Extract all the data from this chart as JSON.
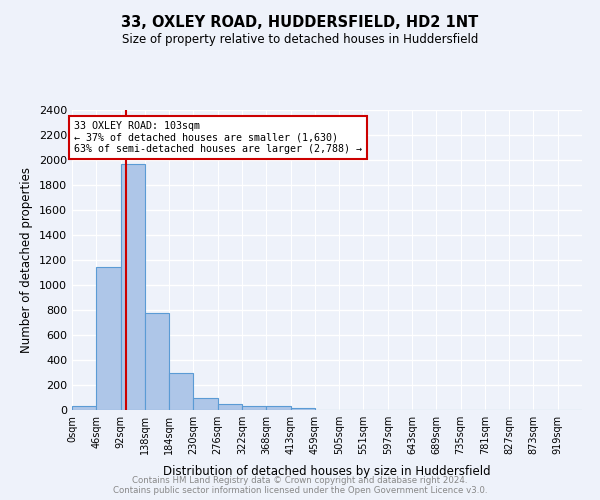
{
  "title": "33, OXLEY ROAD, HUDDERSFIELD, HD2 1NT",
  "subtitle": "Size of property relative to detached houses in Huddersfield",
  "xlabel": "Distribution of detached houses by size in Huddersfield",
  "ylabel": "Number of detached properties",
  "footer_line1": "Contains HM Land Registry data © Crown copyright and database right 2024.",
  "footer_line2": "Contains public sector information licensed under the Open Government Licence v3.0.",
  "bar_labels": [
    "0sqm",
    "46sqm",
    "92sqm",
    "138sqm",
    "184sqm",
    "230sqm",
    "276sqm",
    "322sqm",
    "368sqm",
    "413sqm",
    "459sqm",
    "505sqm",
    "551sqm",
    "597sqm",
    "643sqm",
    "689sqm",
    "735sqm",
    "781sqm",
    "827sqm",
    "873sqm",
    "919sqm"
  ],
  "bar_values": [
    30,
    1145,
    1970,
    780,
    295,
    100,
    45,
    35,
    30,
    15,
    0,
    0,
    0,
    0,
    0,
    0,
    0,
    0,
    0,
    0,
    0
  ],
  "bar_color": "#aec6e8",
  "bar_edgecolor": "#5b9bd5",
  "annotation_box_text": "33 OXLEY ROAD: 103sqm\n← 37% of detached houses are smaller (1,630)\n63% of semi-detached houses are larger (2,788) →",
  "vline_x": 103,
  "vline_color": "#cc0000",
  "box_edgecolor": "#cc0000",
  "ylim": [
    0,
    2400
  ],
  "yticks": [
    0,
    200,
    400,
    600,
    800,
    1000,
    1200,
    1400,
    1600,
    1800,
    2000,
    2200,
    2400
  ],
  "background_color": "#eef2fa",
  "grid_color": "#ffffff",
  "bin_width": 46
}
